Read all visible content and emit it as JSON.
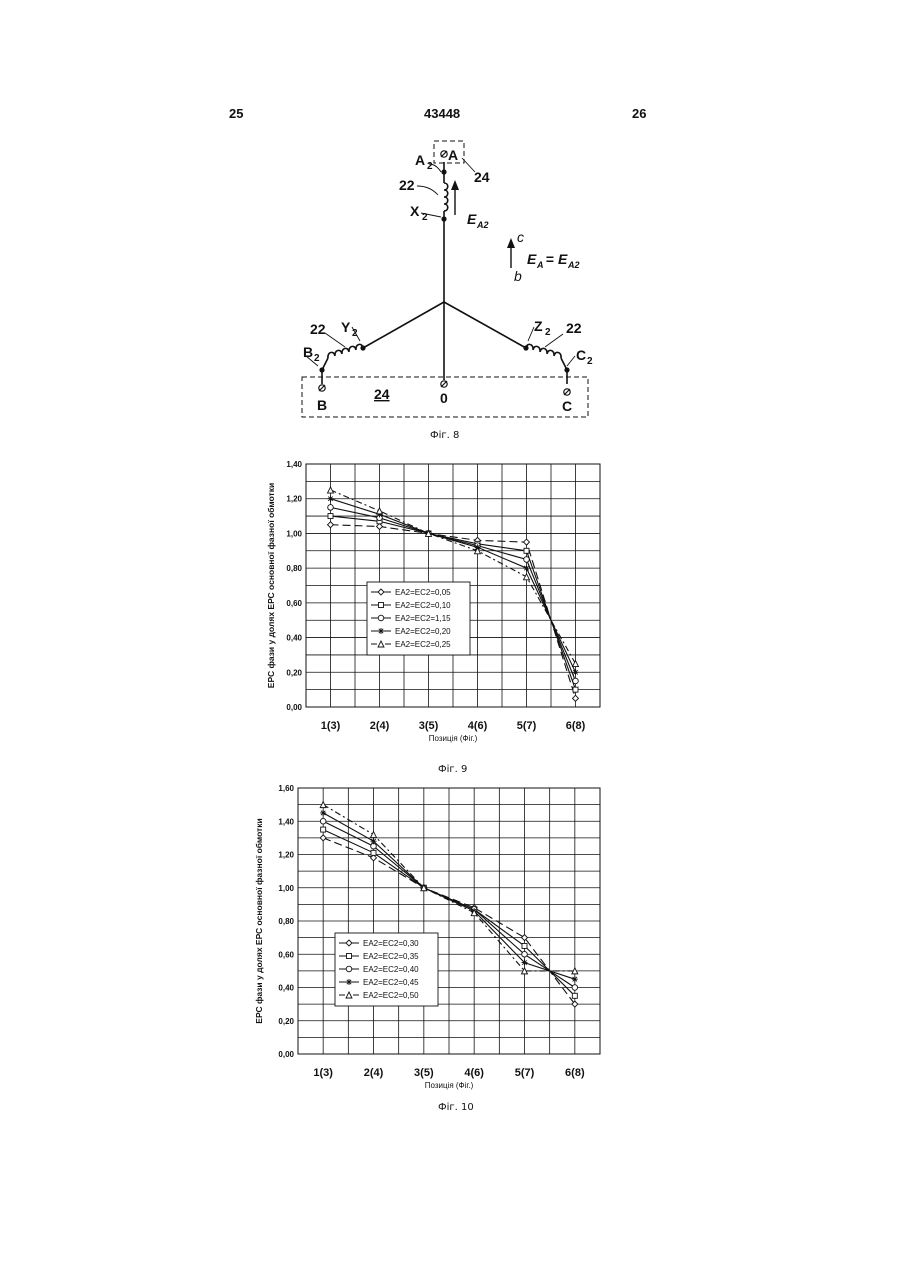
{
  "header": {
    "left": "25",
    "center": "43448",
    "right": "26"
  },
  "fig8": {
    "caption": "Фіг. 8",
    "labels": {
      "A": "A",
      "A2": "A",
      "X2": "X",
      "B": "B",
      "B2": "B",
      "Y2": "Y",
      "C": "C",
      "C2": "C",
      "Z2": "Z",
      "zero": "0",
      "sub2": "2",
      "n22a": "22",
      "n22b": "22",
      "n22c": "22",
      "n24a": "24",
      "n24b": "24",
      "EA2": "E",
      "EA2sub": "A2",
      "c": "c",
      "b": "b",
      "eq_lhs": "E",
      "eq_lhs_sub": "A",
      "eq_mid": " = ",
      "eq_rhs": "E",
      "eq_rhs_sub": "A2"
    }
  },
  "fig9": {
    "caption": "Фіг. 9",
    "chart_data": {
      "type": "line",
      "categories": [
        "1(3)",
        "2(4)",
        "3(5)",
        "4(6)",
        "5(7)",
        "6(8)"
      ],
      "ylabel": "ЕРС фази у долях ЕРС основної фазної обмотки",
      "xlabel": "Позиція (Фіг.)",
      "ylim": [
        0,
        1.4
      ],
      "yticks": [
        "0,00",
        "0,20",
        "0,40",
        "0,60",
        "0,80",
        "1,00",
        "1,20",
        "1,40"
      ],
      "grid": true,
      "legend_position": "left-center",
      "series": [
        {
          "name": "EA2=EC2=0,05",
          "marker": "diamond",
          "dash": "8,4",
          "points": [
            [
              0,
              1.05
            ],
            [
              1,
              1.04
            ],
            [
              2,
              1.0
            ],
            [
              3,
              0.96
            ],
            [
              4,
              0.95
            ],
            [
              5,
              0.05
            ]
          ]
        },
        {
          "name": "EA2=EC2=0,10",
          "marker": "square",
          "dash": "",
          "points": [
            [
              0,
              1.1
            ],
            [
              1,
              1.07
            ],
            [
              2,
              1.0
            ],
            [
              3,
              0.94
            ],
            [
              4,
              0.9
            ],
            [
              5,
              0.1
            ]
          ]
        },
        {
          "name": "EA2=EC2=1,15",
          "marker": "circle",
          "dash": "",
          "points": [
            [
              0,
              1.15
            ],
            [
              1,
              1.09
            ],
            [
              2,
              1.0
            ],
            [
              3,
              0.93
            ],
            [
              4,
              0.85
            ],
            [
              5,
              0.15
            ]
          ]
        },
        {
          "name": "EA2=EC2=0,20",
          "marker": "star",
          "dash": "",
          "points": [
            [
              0,
              1.2
            ],
            [
              1,
              1.11
            ],
            [
              2,
              1.0
            ],
            [
              3,
              0.92
            ],
            [
              4,
              0.8
            ],
            [
              5,
              0.2
            ]
          ]
        },
        {
          "name": "EA2=EC2=0,25",
          "marker": "triangle",
          "dash": "6,3,2,3",
          "points": [
            [
              0,
              1.25
            ],
            [
              1,
              1.13
            ],
            [
              2,
              1.0
            ],
            [
              3,
              0.9
            ],
            [
              4,
              0.75
            ],
            [
              5,
              0.25
            ]
          ]
        }
      ]
    }
  },
  "fig10": {
    "caption": "Фіг. 10",
    "chart_data": {
      "type": "line",
      "categories": [
        "1(3)",
        "2(4)",
        "3(5)",
        "4(6)",
        "5(7)",
        "6(8)"
      ],
      "ylabel": "ЕРС фази у долях ЕРС основної фазної обмотки",
      "xlabel": "Позиція (Фіг.)",
      "ylim": [
        0,
        1.6
      ],
      "yticks": [
        "0,00",
        "0,20",
        "0,40",
        "0,60",
        "0,80",
        "1,00",
        "1,20",
        "1,40",
        "1,60"
      ],
      "grid": true,
      "legend_position": "left-lower",
      "series": [
        {
          "name": "EA2=EC2=0,30",
          "marker": "diamond",
          "dash": "8,4",
          "points": [
            [
              0,
              1.3
            ],
            [
              1,
              1.18
            ],
            [
              2,
              1.0
            ],
            [
              3,
              0.88
            ],
            [
              4,
              0.7
            ],
            [
              5,
              0.3
            ]
          ]
        },
        {
          "name": "EA2=EC2=0,35",
          "marker": "square",
          "dash": "",
          "points": [
            [
              0,
              1.35
            ],
            [
              1,
              1.21
            ],
            [
              2,
              1.0
            ],
            [
              3,
              0.87
            ],
            [
              4,
              0.65
            ],
            [
              5,
              0.35
            ]
          ]
        },
        {
          "name": "EA2=EC2=0,40",
          "marker": "circle",
          "dash": "",
          "points": [
            [
              0,
              1.4
            ],
            [
              1,
              1.25
            ],
            [
              2,
              1.0
            ],
            [
              3,
              0.87
            ],
            [
              4,
              0.6
            ],
            [
              5,
              0.4
            ]
          ]
        },
        {
          "name": "EA2=EC2=0,45",
          "marker": "star",
          "dash": "",
          "points": [
            [
              0,
              1.45
            ],
            [
              1,
              1.28
            ],
            [
              2,
              1.0
            ],
            [
              3,
              0.86
            ],
            [
              4,
              0.55
            ],
            [
              5,
              0.45
            ]
          ]
        },
        {
          "name": "EA2=EC2=0,50",
          "marker": "triangle",
          "dash": "6,3,2,3",
          "points": [
            [
              0,
              1.5
            ],
            [
              1,
              1.32
            ],
            [
              2,
              1.0
            ],
            [
              3,
              0.85
            ],
            [
              4,
              0.5
            ],
            [
              5,
              0.5
            ]
          ]
        }
      ]
    }
  }
}
